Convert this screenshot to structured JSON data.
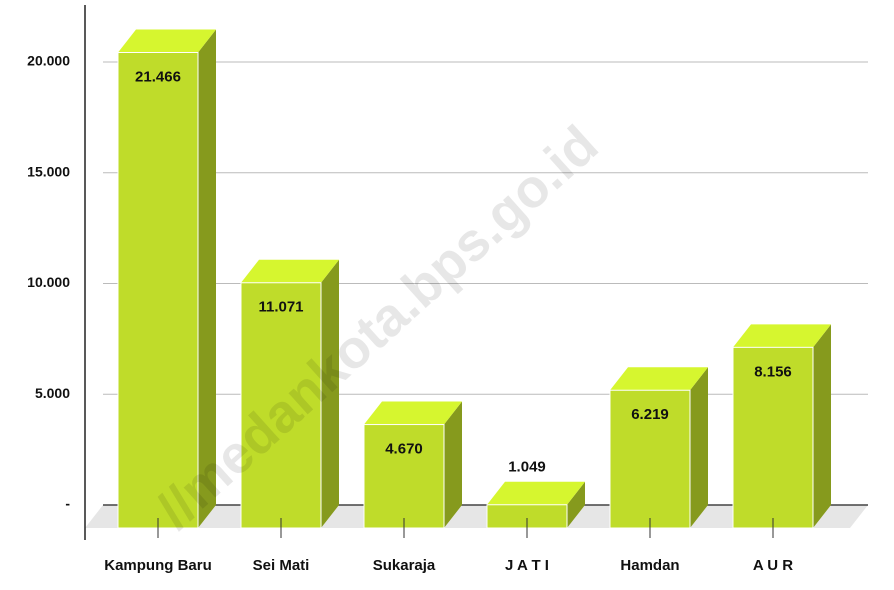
{
  "chart_data": {
    "type": "bar3d",
    "categories": [
      "Kampung Baru",
      "Sei Mati",
      "Sukaraja",
      "J A T I",
      "Hamdan",
      "A U R"
    ],
    "values": [
      21466,
      11071,
      4670,
      1049,
      6219,
      8156
    ],
    "value_labels": [
      "21.466",
      "11.071",
      "4.670",
      "1.049",
      "6.219",
      "8.156"
    ],
    "color": "#bfdc2a",
    "ylim": [
      0,
      22500
    ],
    "yticks": [
      {
        "value": 0,
        "label": "-"
      },
      {
        "value": 5000,
        "label": "5.000"
      },
      {
        "value": 10000,
        "label": "10.000"
      },
      {
        "value": 15000,
        "label": "15.000"
      },
      {
        "value": 20000,
        "label": "20.000"
      }
    ],
    "grid": true,
    "watermark": "//medankota.bps.go.id"
  }
}
